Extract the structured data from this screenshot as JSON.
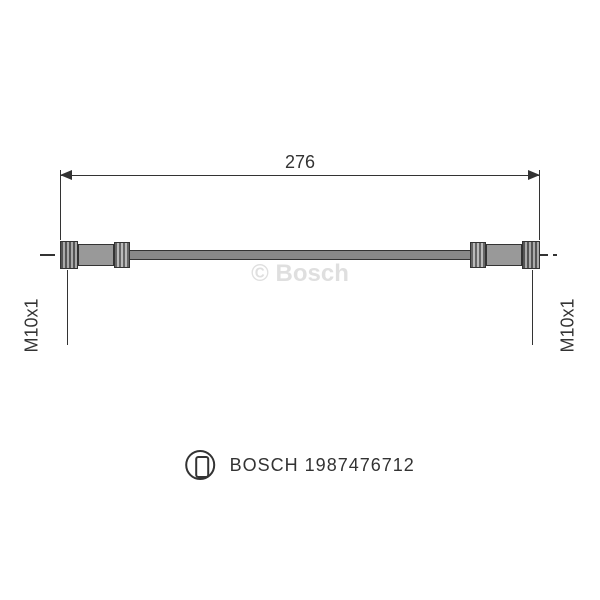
{
  "diagram": {
    "type": "technical-drawing",
    "part_type": "brake-hose",
    "length_mm": 276,
    "length_label": "276",
    "thread_left": "M10x1",
    "thread_right": "M10x1",
    "colors": {
      "background": "#ffffff",
      "line": "#333333",
      "hose_fill": "#888888",
      "fitting_fill": "#999999",
      "watermark": "rgba(150,150,150,0.3)"
    },
    "font_sizes": {
      "dimension": 18,
      "thread": 18,
      "brand": 18,
      "watermark": 24
    }
  },
  "brand": {
    "name": "BOSCH",
    "part_number": "1987476712",
    "display": "BOSCH 1987476712",
    "watermark": "© Bosch"
  }
}
